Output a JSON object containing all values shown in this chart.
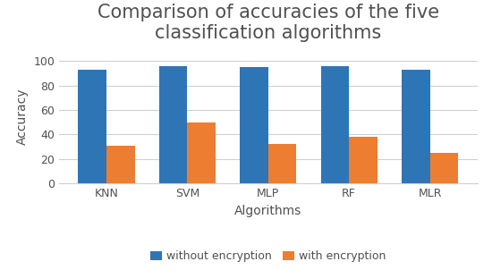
{
  "title": "Comparison of accuracies of the five\nclassification algorithms",
  "categories": [
    "KNN",
    "SVM",
    "MLP",
    "RF",
    "MLR"
  ],
  "without_encryption": [
    93,
    96,
    95,
    96,
    93
  ],
  "with_encryption": [
    31,
    50,
    32,
    38,
    25
  ],
  "color_without": "#2E75B6",
  "color_with": "#ED7D31",
  "xlabel": "Algorithms",
  "ylabel": "Accuracy",
  "ylim": [
    0,
    110
  ],
  "yticks": [
    0,
    20,
    40,
    60,
    80,
    100
  ],
  "legend_labels": [
    "without encryption",
    "with encryption"
  ],
  "bar_width": 0.35,
  "title_fontsize": 15,
  "axis_label_fontsize": 10,
  "tick_fontsize": 9,
  "legend_fontsize": 9,
  "background_color": "#FFFFFF",
  "grid_color": "#D0D0D0"
}
